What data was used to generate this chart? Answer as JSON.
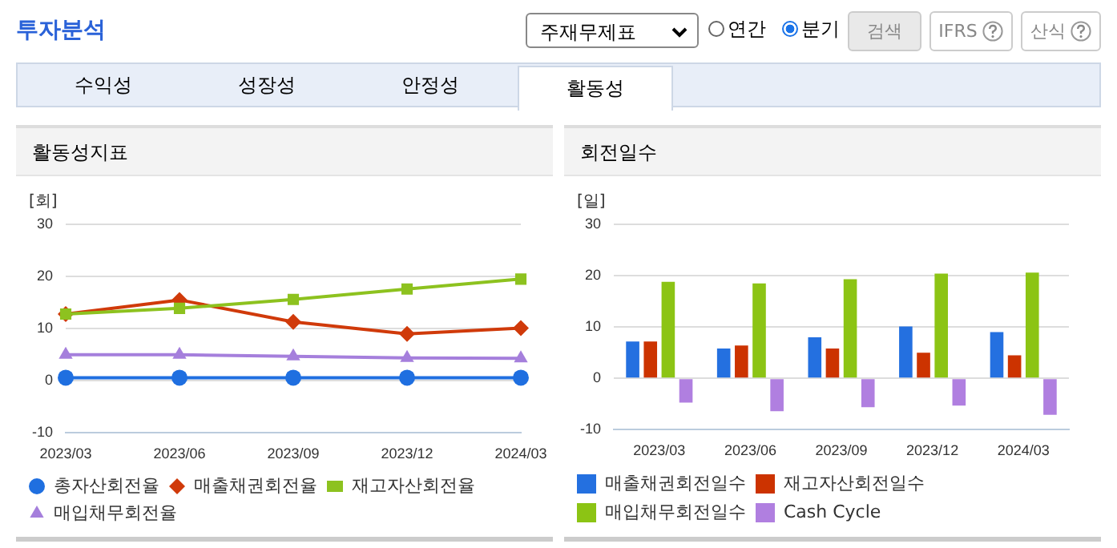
{
  "chart_data": [
    {
      "type": "other",
      "title": "투자분석",
      "annotations": [
        "주재무제표",
        "연간",
        "분기",
        "검색",
        "IFRS",
        "산식",
        "수익성",
        "성장성",
        "안정성",
        "활동성"
      ]
    },
    {
      "type": "line",
      "title": "활동성지표",
      "ylabel": "[회]",
      "categories": [
        "2023/03",
        "2023/06",
        "2023/09",
        "2023/12",
        "2024/03"
      ],
      "ylim": [
        -10,
        30
      ],
      "yticks": [
        -10,
        0,
        10,
        20,
        30
      ],
      "grid": "y",
      "legend": "bottom",
      "series": [
        {
          "name": "총자산회전율",
          "color": "#1f6fe0",
          "marker": "circle",
          "values": [
            0.6,
            0.6,
            0.6,
            0.6,
            0.6
          ]
        },
        {
          "name": "매출채권회전율",
          "color": "#d03a0a",
          "marker": "diamond",
          "values": [
            12.8,
            15.5,
            11.3,
            9.0,
            10.1
          ]
        },
        {
          "name": "재고자산회전율",
          "color": "#8dc21f",
          "marker": "square",
          "values": [
            12.8,
            13.9,
            15.6,
            17.6,
            19.5
          ]
        },
        {
          "name": "매입채무회전율",
          "color": "#a57fdc",
          "marker": "triangle",
          "values": [
            5.0,
            5.0,
            4.7,
            4.4,
            4.3
          ]
        }
      ]
    },
    {
      "type": "bar",
      "title": "회전일수",
      "ylabel": "[일]",
      "categories": [
        "2023/03",
        "2023/06",
        "2023/09",
        "2023/12",
        "2024/03"
      ],
      "ylim": [
        -10,
        30
      ],
      "yticks": [
        -10,
        0,
        10,
        20,
        30
      ],
      "grid": "y",
      "legend": "bottom",
      "series": [
        {
          "name": "매출채권회전일수",
          "color": "#2470e0",
          "values": [
            7.2,
            5.8,
            8.0,
            10.1,
            9.0
          ]
        },
        {
          "name": "재고자산회전일수",
          "color": "#cc3300",
          "values": [
            7.2,
            6.4,
            5.8,
            5.0,
            4.5
          ]
        },
        {
          "name": "매입채무회전일수",
          "color": "#8cc414",
          "values": [
            18.8,
            18.5,
            19.3,
            20.4,
            20.6
          ]
        },
        {
          "name": "Cash Cycle",
          "color": "#b07fe0",
          "values": [
            -4.7,
            -6.4,
            -5.6,
            -5.3,
            -7.1
          ]
        }
      ]
    }
  ]
}
